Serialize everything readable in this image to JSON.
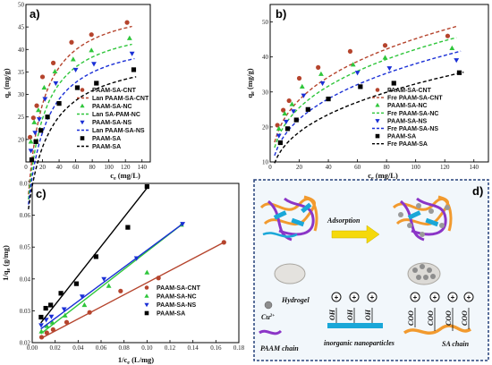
{
  "colors": {
    "cnt": "#b5442d",
    "nc": "#2fc63b",
    "ns": "#1a2fd6",
    "sa": "#000000"
  },
  "chart_data": [
    {
      "id": "a",
      "type": "scatter",
      "panel_label": "a)",
      "xlabel": "c_e (mg/L)",
      "ylabel": "q_e (mg/g)",
      "xlim": [
        0,
        150
      ],
      "ylim": [
        15,
        50
      ],
      "xticks": [
        0,
        20,
        40,
        60,
        80,
        100,
        120,
        140
      ],
      "yticks": [
        20,
        25,
        30,
        35,
        40,
        45,
        50
      ],
      "legend_position": "bottom-right",
      "series": [
        {
          "name": "PAAM-SA-CNT",
          "kind": "points",
          "marker": "circle",
          "color": "cnt",
          "x": [
            5,
            9,
            13,
            20,
            33,
            55,
            79,
            122
          ],
          "y": [
            20.5,
            24.8,
            27.5,
            33.9,
            37,
            41.6,
            43.3,
            46
          ]
        },
        {
          "name": "Lan PAAM-SA-CNT",
          "kind": "fit",
          "model": "langmuir",
          "qm": 51,
          "K": 0.06,
          "color": "cnt",
          "xmin": 3,
          "xmax": 128
        },
        {
          "name": "PAAM-SA-NC",
          "kind": "points",
          "marker": "triangle",
          "color": "nc",
          "x": [
            6,
            10,
            15,
            22,
            35,
            57,
            79,
            125
          ],
          "y": [
            19.5,
            23.8,
            26.5,
            31.5,
            35.1,
            37.8,
            39.8,
            42.5
          ]
        },
        {
          "name": "Lan SA-PAM-NC",
          "kind": "fit",
          "model": "langmuir",
          "qm": 47,
          "K": 0.055,
          "color": "nc",
          "xmin": 3,
          "xmax": 128
        },
        {
          "name": "PAAM-SA-NS",
          "kind": "points",
          "marker": "triangle-down",
          "color": "ns",
          "x": [
            6,
            11,
            16,
            23,
            36,
            60,
            82,
            128
          ],
          "y": [
            17.5,
            21.5,
            24.5,
            29,
            32.5,
            35.5,
            36.8,
            39.1
          ]
        },
        {
          "name": "Lan PAAM-SA-NS",
          "kind": "fit",
          "model": "langmuir",
          "qm": 44,
          "K": 0.048,
          "color": "ns",
          "xmin": 3,
          "xmax": 131
        },
        {
          "name": "PAAM-SA",
          "kind": "points",
          "marker": "square",
          "color": "sa",
          "x": [
            7,
            12,
            18,
            26,
            40,
            62,
            85,
            130
          ],
          "y": [
            15.5,
            19.5,
            22,
            25,
            28,
            31.5,
            32.5,
            35.5
          ]
        },
        {
          "name": "PAAM-SA",
          "kind": "fit",
          "model": "langmuir",
          "qm": 40,
          "K": 0.042,
          "color": "sa",
          "xmin": 3,
          "xmax": 133
        }
      ]
    },
    {
      "id": "b",
      "type": "scatter",
      "panel_label": "b)",
      "xlabel": "c_e (mg/L)",
      "ylabel": "q_e (mg/g)",
      "xlim": [
        0,
        150
      ],
      "ylim": [
        10,
        55
      ],
      "xticks": [
        0,
        20,
        40,
        60,
        80,
        100,
        120,
        140
      ],
      "yticks": [
        10,
        20,
        30,
        40,
        50
      ],
      "legend_position": "bottom-right",
      "series": [
        {
          "name": "PAAM-SA-CNT",
          "kind": "points",
          "marker": "circle",
          "color": "cnt",
          "x": [
            5,
            9,
            13,
            20,
            33,
            55,
            79,
            122
          ],
          "y": [
            20.5,
            24.8,
            27.5,
            33.9,
            37,
            41.6,
            43.3,
            46
          ]
        },
        {
          "name": "Fre PAAM-SA-CNT",
          "kind": "fit",
          "model": "freundlich",
          "Kf": 11.2,
          "n": 3.3,
          "color": "cnt",
          "xmin": 3,
          "xmax": 128
        },
        {
          "name": "PAAM-SA-NC",
          "kind": "points",
          "marker": "triangle",
          "color": "nc",
          "x": [
            6,
            10,
            15,
            22,
            35,
            57,
            79,
            125
          ],
          "y": [
            19.5,
            23.8,
            26.5,
            31.5,
            35.1,
            37.8,
            39.8,
            42.5
          ]
        },
        {
          "name": "Fre PAAM-SA-NC",
          "kind": "fit",
          "model": "freundlich",
          "Kf": 10,
          "n": 3.2,
          "color": "nc",
          "xmin": 3,
          "xmax": 128
        },
        {
          "name": "PAAM-SA-NS",
          "kind": "points",
          "marker": "triangle-down",
          "color": "ns",
          "x": [
            6,
            11,
            16,
            23,
            36,
            60,
            82,
            128
          ],
          "y": [
            17.5,
            21.5,
            24.5,
            29,
            32.5,
            35.5,
            36.8,
            39.1
          ]
        },
        {
          "name": "Fre PAAM-SA-NS",
          "kind": "fit",
          "model": "freundlich",
          "Kf": 8.2,
          "n": 3.0,
          "color": "ns",
          "xmin": 3,
          "xmax": 131
        },
        {
          "name": "PAAM-SA",
          "kind": "points",
          "marker": "square",
          "color": "sa",
          "x": [
            7,
            12,
            18,
            26,
            40,
            62,
            85,
            130
          ],
          "y": [
            15.5,
            19.5,
            22,
            25,
            28,
            31.5,
            32.5,
            35.5
          ]
        },
        {
          "name": "Fre PAAM-SA",
          "kind": "fit",
          "model": "freundlich",
          "Kf": 6.6,
          "n": 2.9,
          "color": "sa",
          "xmin": 3,
          "xmax": 133
        }
      ]
    },
    {
      "id": "c",
      "type": "scatter",
      "panel_label": "c)",
      "xlabel": "1/c_e (L/mg)",
      "ylabel": "1/q_e (g/mg)",
      "xlim": [
        0,
        0.18
      ],
      "ylim": [
        0.02,
        0.07
      ],
      "xticks": [
        0,
        0.02,
        0.04,
        0.06,
        0.08,
        0.1,
        0.12,
        0.14,
        0.16,
        0.18
      ],
      "xticklabels": [
        "0.00",
        "0.02",
        "0.04",
        "0.06",
        "0.08",
        "0.10",
        "0.12",
        "0.14",
        "0.16",
        "0.18"
      ],
      "yticks": [
        0.02,
        0.03,
        0.04,
        0.05,
        0.06,
        0.07
      ],
      "yticklabels": [
        "0.02",
        "0.03",
        "0.04",
        "0.05",
        "0.06",
        "0.07"
      ],
      "legend_position": "bottom-right",
      "series": [
        {
          "name": "PAAM-SA-CNT",
          "kind": "points",
          "marker": "circle",
          "color": "cnt",
          "x": [
            0.0082,
            0.0127,
            0.0182,
            0.03,
            0.05,
            0.077,
            0.11,
            0.167
          ],
          "y": [
            0.0217,
            0.0231,
            0.0241,
            0.0264,
            0.0295,
            0.0362,
            0.0403,
            0.0515
          ]
        },
        {
          "name": "",
          "kind": "line",
          "color": "cnt",
          "x": [
            0.0075,
            0.167
          ],
          "y": [
            0.0213,
            0.0515
          ]
        },
        {
          "name": "PAAM-SA-NC",
          "kind": "points",
          "marker": "triangle",
          "color": "nc",
          "x": [
            0.008,
            0.0127,
            0.0175,
            0.0286,
            0.0455,
            0.0667,
            0.1,
            0.13
          ],
          "y": [
            0.0235,
            0.0252,
            0.0263,
            0.0285,
            0.0318,
            0.0378,
            0.042,
            0.057
          ]
        },
        {
          "name": "",
          "kind": "line",
          "color": "nc",
          "x": [
            0.0075,
            0.13
          ],
          "y": [
            0.0228,
            0.057
          ]
        },
        {
          "name": "PAAM-SA-NS",
          "kind": "points",
          "marker": "triangle-down",
          "color": "ns",
          "x": [
            0.0078,
            0.0122,
            0.0167,
            0.0278,
            0.0435,
            0.0625,
            0.0909,
            0.131
          ],
          "y": [
            0.0255,
            0.0272,
            0.0282,
            0.0305,
            0.0345,
            0.04,
            0.0465,
            0.0573
          ]
        },
        {
          "name": "",
          "kind": "line",
          "color": "ns",
          "x": [
            0.0075,
            0.131
          ],
          "y": [
            0.0243,
            0.0573
          ]
        },
        {
          "name": "PAAM-SA",
          "kind": "points",
          "marker": "square",
          "color": "sa",
          "x": [
            0.0077,
            0.0118,
            0.0161,
            0.025,
            0.0385,
            0.0556,
            0.0833,
            0.1
          ],
          "y": [
            0.028,
            0.0308,
            0.0318,
            0.0355,
            0.0385,
            0.047,
            0.0562,
            0.069
          ]
        },
        {
          "name": "",
          "kind": "line",
          "color": "sa",
          "x": [
            0.0075,
            0.101
          ],
          "y": [
            0.0262,
            0.069
          ]
        }
      ]
    }
  ],
  "diagram": {
    "panel_label": "d)",
    "arrow_label": "Adsorption",
    "hydrogel_label": "Hydrogel",
    "cu_label": "Cu",
    "cu_sup": "2+",
    "paam_label": "PAAM chain",
    "inorganic_label": "inorganic  nanoparticles",
    "sa_label": "SA chain",
    "oh_label": "OH",
    "coo_label": "COO"
  }
}
